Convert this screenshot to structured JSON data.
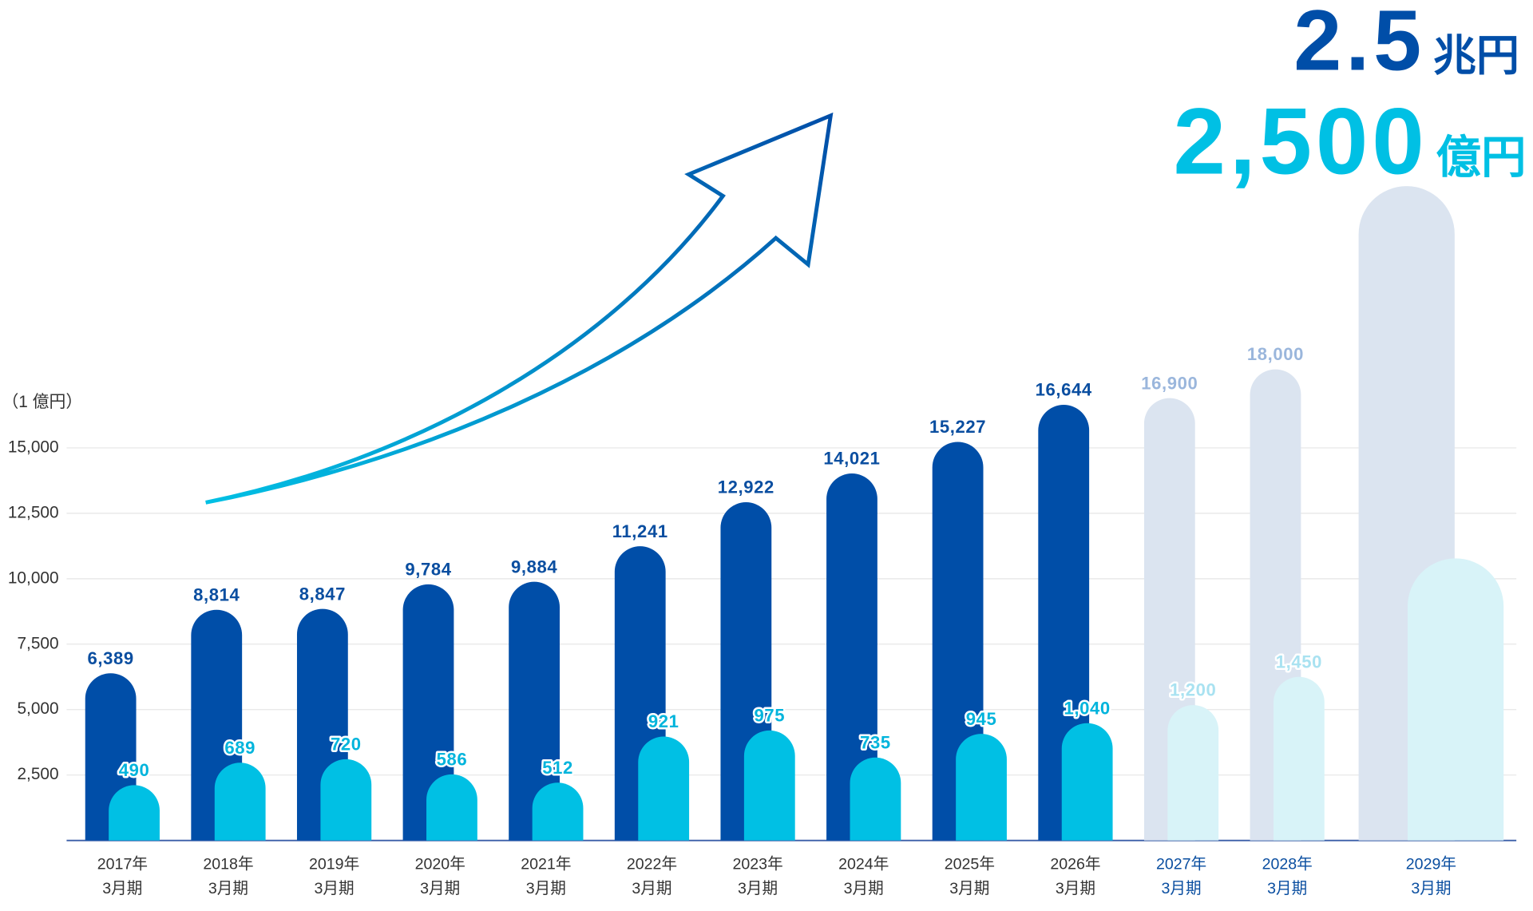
{
  "chart_data": {
    "type": "bar",
    "unit_label": "（1 億円）",
    "annotations": [
      {
        "text": "2.5",
        "unit": "兆円",
        "color": "#004ea8"
      },
      {
        "text": "2,500",
        "unit": "億円",
        "color": "#00c0e4"
      }
    ],
    "categories": [
      [
        "2017年",
        "3月期"
      ],
      [
        "2018年",
        "3月期"
      ],
      [
        "2019年",
        "3月期"
      ],
      [
        "2020年",
        "3月期"
      ],
      [
        "2021年",
        "3月期"
      ],
      [
        "2022年",
        "3月期"
      ],
      [
        "2023年",
        "3月期"
      ],
      [
        "2024年",
        "3月期"
      ],
      [
        "2025年",
        "3月期"
      ],
      [
        "2026年",
        "3月期"
      ],
      [
        "2027年",
        "3月期"
      ],
      [
        "2028年",
        "3月期"
      ],
      [
        "2029年",
        "3月期"
      ]
    ],
    "category_colors": [
      "#333333",
      "#333333",
      "#333333",
      "#333333",
      "#333333",
      "#333333",
      "#333333",
      "#333333",
      "#333333",
      "#333333",
      "#0a4ea0",
      "#0a4ea0",
      "#0a4ea0"
    ],
    "series": [
      {
        "values": [
          6389,
          8814,
          8847,
          9784,
          9884,
          11241,
          12922,
          14021,
          15227,
          16644,
          16900,
          18000,
          25000
        ],
        "value_labels": [
          "6,389",
          "8,814",
          "8,847",
          "9,784",
          "9,884",
          "11,241",
          "12,922",
          "14,021",
          "15,227",
          "16,644",
          "16,900",
          "18,000",
          null
        ],
        "colors": [
          "#004ea8",
          "#004ea8",
          "#004ea8",
          "#004ea8",
          "#004ea8",
          "#004ea8",
          "#004ea8",
          "#004ea8",
          "#004ea8",
          "#004ea8",
          "#dbe4f0",
          "#dbe4f0",
          "#dbe4f0"
        ],
        "label_colors": [
          "#0a4ea0",
          "#0a4ea0",
          "#0a4ea0",
          "#0a4ea0",
          "#0a4ea0",
          "#0a4ea0",
          "#0a4ea0",
          "#0a4ea0",
          "#0a4ea0",
          "#0a4ea0",
          "#9ab6dc",
          "#9ab6dc",
          "#9ab6dc"
        ]
      },
      {
        "axis": "y2",
        "values": [
          490,
          689,
          720,
          586,
          512,
          921,
          975,
          735,
          945,
          1040,
          1200,
          1450,
          2500
        ],
        "value_labels": [
          "490",
          "689",
          "720",
          "586",
          "512",
          "921",
          "975",
          "735",
          "945",
          "1,040",
          "1,200",
          "1,450",
          null
        ],
        "colors": [
          "#00c0e4",
          "#00c0e4",
          "#00c0e4",
          "#00c0e4",
          "#00c0e4",
          "#00c0e4",
          "#00c0e4",
          "#00c0e4",
          "#00c0e4",
          "#00c0e4",
          "#d8f3f8",
          "#d8f3f8",
          "#d8f3f8"
        ],
        "label_colors": [
          "#00b4dc",
          "#00b4dc",
          "#00b4dc",
          "#00b4dc",
          "#00b4dc",
          "#00b4dc",
          "#00b4dc",
          "#00b4dc",
          "#00b4dc",
          "#00b4dc",
          "#a9e2f1",
          "#a9e2f1",
          "#a9e2f1"
        ]
      }
    ],
    "ylim": [
      0,
      25000
    ],
    "yticks": [
      {
        "value": 2500,
        "label": "2,500"
      },
      {
        "value": 5000,
        "label": "5,000"
      },
      {
        "value": 7500,
        "label": "7,500"
      },
      {
        "value": 10000,
        "label": "10,000"
      },
      {
        "value": 12500,
        "label": "12,500"
      },
      {
        "value": 15000,
        "label": "15,000"
      }
    ],
    "y2lim": [
      0,
      5800
    ],
    "grid": true
  }
}
